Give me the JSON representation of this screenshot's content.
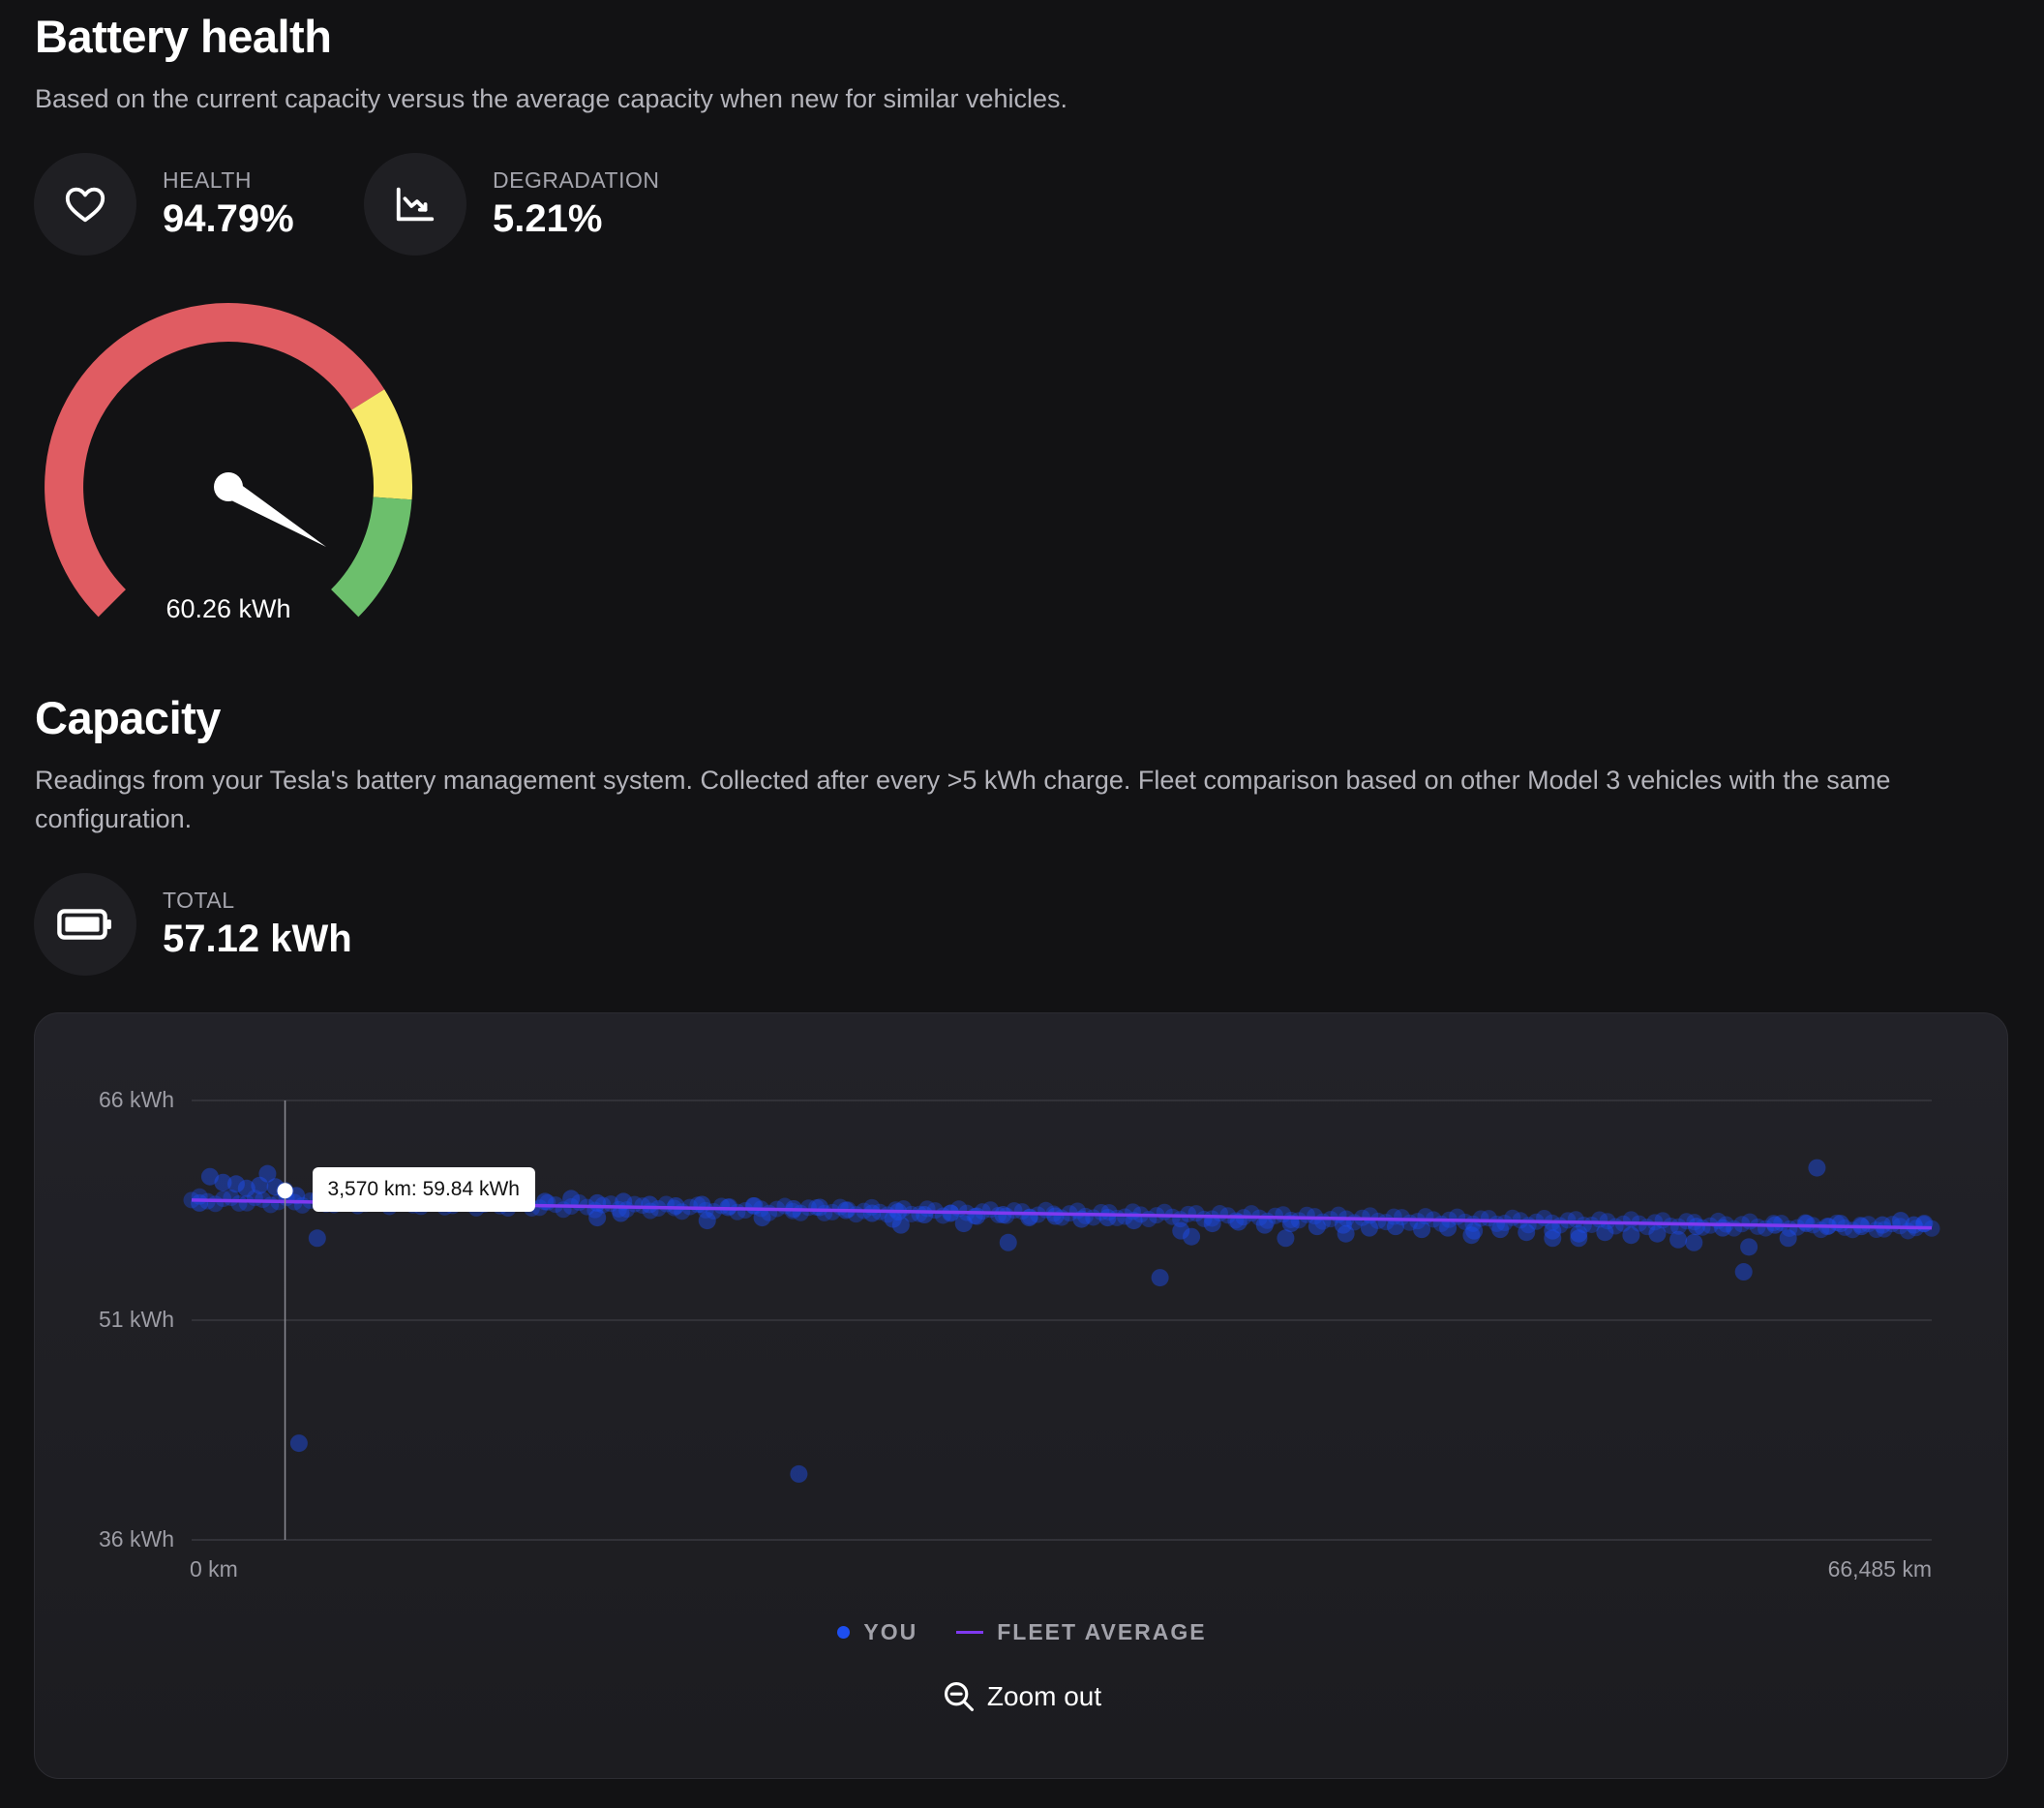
{
  "battery_health": {
    "title": "Battery health",
    "description": "Based on the current capacity versus the average capacity when new for similar vehicles.",
    "health": {
      "label": "HEALTH",
      "value": "94.79%",
      "icon": "heart-icon"
    },
    "degradation": {
      "label": "DEGRADATION",
      "value": "5.21%",
      "icon": "trending-down-icon"
    },
    "gauge": {
      "value_label": "60.26 kWh",
      "colors": {
        "low": "#e05c62",
        "mid": "#f8ea6a",
        "high": "#6cbf6c"
      }
    }
  },
  "capacity": {
    "title": "Capacity",
    "description": "Readings from your Tesla's battery management system. Collected after every >5 kWh charge. Fleet comparison based on other Model 3 vehicles with the same configuration.",
    "total": {
      "label": "TOTAL",
      "value": "57.12 kWh",
      "icon": "battery-icon"
    }
  },
  "chart": {
    "tooltip": "3,570 km: 59.84 kWh",
    "legend": {
      "you": "YOU",
      "fleet": "FLEET AVERAGE"
    },
    "zoom_label": "Zoom out",
    "colors": {
      "you": "#1d4ef0",
      "fleet": "#7f39f0"
    }
  },
  "chart_data": {
    "type": "scatter",
    "title": "",
    "xlabel": "",
    "ylabel": "",
    "x_range": [
      0,
      66485
    ],
    "y_range": [
      36,
      66
    ],
    "x_tick_labels": [
      "0 km",
      "66,485 km"
    ],
    "y_tick_labels": [
      "66 kWh",
      "51 kWh",
      "36 kWh"
    ],
    "y_ticks": [
      66,
      51,
      36
    ],
    "grid": true,
    "legend_position": "bottom-center",
    "highlight": {
      "x": 3570,
      "y": 59.84
    },
    "series": [
      {
        "name": "YOU",
        "kind": "scatter",
        "points": [
          [
            300,
            59.0
          ],
          [
            700,
            60.8
          ],
          [
            1200,
            60.4
          ],
          [
            1700,
            60.3
          ],
          [
            2100,
            60.0
          ],
          [
            2600,
            60.2
          ],
          [
            2900,
            61.0
          ],
          [
            3200,
            60.1
          ],
          [
            3570,
            59.84
          ],
          [
            4000,
            59.5
          ],
          [
            4100,
            42.6
          ],
          [
            4800,
            56.6
          ],
          [
            5500,
            59.7
          ],
          [
            6500,
            59.9
          ],
          [
            7500,
            59.6
          ],
          [
            8500,
            59.5
          ],
          [
            9500,
            59.4
          ],
          [
            10500,
            59.2
          ],
          [
            11500,
            59.5
          ],
          [
            12500,
            59.3
          ],
          [
            13500,
            59.1
          ],
          [
            14500,
            59.3
          ],
          [
            15500,
            59.0
          ],
          [
            16500,
            59.1
          ],
          [
            17500,
            58.9
          ],
          [
            18500,
            58.8
          ],
          [
            19500,
            58.9
          ],
          [
            20500,
            58.7
          ],
          [
            21500,
            58.8
          ],
          [
            21800,
            58.0
          ],
          [
            23000,
            58.6
          ],
          [
            23200,
            40.5
          ],
          [
            24000,
            58.7
          ],
          [
            25000,
            58.5
          ],
          [
            26000,
            58.3
          ],
          [
            27000,
            58.4
          ],
          [
            28000,
            58.2
          ],
          [
            29000,
            58.3
          ],
          [
            30000,
            58.1
          ],
          [
            31000,
            58.2
          ],
          [
            31200,
            56.3
          ],
          [
            32000,
            58.0
          ],
          [
            33000,
            58.1
          ],
          [
            34000,
            57.9
          ],
          [
            35000,
            58.0
          ],
          [
            36000,
            57.8
          ],
          [
            37000,
            53.9
          ],
          [
            37800,
            57.1
          ],
          [
            38200,
            56.7
          ],
          [
            39000,
            57.6
          ],
          [
            40000,
            57.7
          ],
          [
            41000,
            57.5
          ],
          [
            42000,
            57.6
          ],
          [
            43000,
            57.4
          ],
          [
            44000,
            57.5
          ],
          [
            45000,
            57.3
          ],
          [
            46000,
            57.4
          ],
          [
            47000,
            57.2
          ],
          [
            48000,
            57.3
          ],
          [
            49000,
            57.1
          ],
          [
            50000,
            57.2
          ],
          [
            51000,
            57.0
          ],
          [
            52000,
            57.1
          ],
          [
            53000,
            56.9
          ],
          [
            54000,
            57.0
          ],
          [
            55000,
            56.8
          ],
          [
            56000,
            56.9
          ],
          [
            56800,
            56.5
          ],
          [
            57500,
            57.4
          ],
          [
            58500,
            57.3
          ],
          [
            59300,
            54.3
          ],
          [
            59500,
            56.0
          ],
          [
            60500,
            57.5
          ],
          [
            61000,
            56.6
          ],
          [
            61700,
            57.6
          ],
          [
            62500,
            57.4
          ],
          [
            63000,
            57.6
          ],
          [
            63800,
            57.4
          ],
          [
            64600,
            57.5
          ],
          [
            65300,
            57.8
          ],
          [
            65800,
            57.5
          ],
          [
            66200,
            57.6
          ],
          [
            57400,
            56.3
          ],
          [
            53000,
            56.6
          ],
          [
            41800,
            56.6
          ],
          [
            44100,
            56.9
          ],
          [
            48900,
            56.8
          ],
          [
            52000,
            56.6
          ],
          [
            26800,
            57.9
          ],
          [
            27100,
            57.5
          ],
          [
            29500,
            57.6
          ],
          [
            19700,
            57.8
          ],
          [
            15500,
            58.0
          ],
          [
            16400,
            58.3
          ],
          [
            8400,
            59.5
          ],
          [
            11600,
            59.8
          ],
          [
            62100,
            61.4
          ]
        ]
      },
      {
        "name": "FLEET AVERAGE",
        "kind": "line",
        "points": [
          [
            0,
            59.2
          ],
          [
            66485,
            57.3
          ]
        ]
      }
    ]
  }
}
